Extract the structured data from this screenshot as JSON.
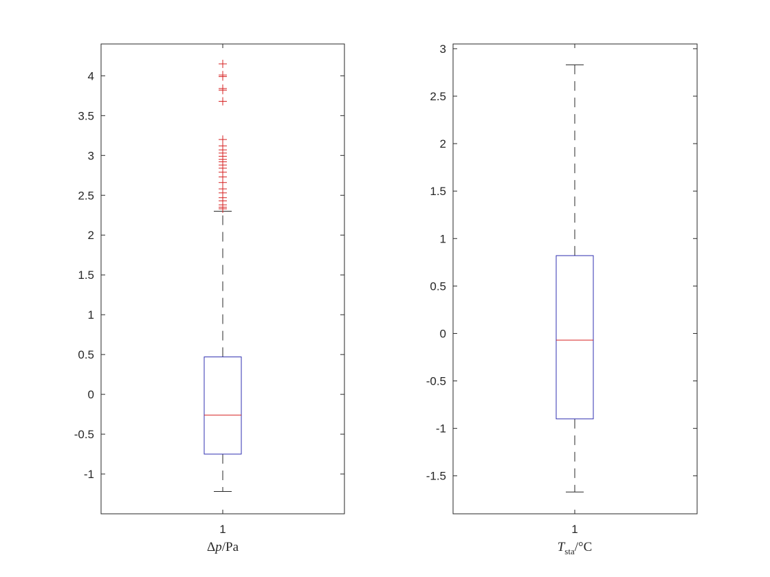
{
  "figure": {
    "background": "#ffffff",
    "axis_color": "#262626",
    "box_color": "#2f2fb0",
    "median_color": "#d62020",
    "outlier_color": "#d62020",
    "whisker_color": "#262626"
  },
  "chart_data": [
    {
      "type": "box",
      "categories": [
        "1"
      ],
      "xlabel": "Δp/Pa",
      "xlabel_parts": {
        "delta": "Δ",
        "var": "p",
        "slash": "/",
        "unit": "Pa"
      },
      "ylabel": "",
      "ylim": [
        -1.5,
        4.4
      ],
      "yticks": [
        -1,
        -0.5,
        0,
        0.5,
        1,
        1.5,
        2,
        2.5,
        3,
        3.5,
        4
      ],
      "ytick_labels": [
        "-1",
        "-0.5",
        "0",
        "0.5",
        "1",
        "1.5",
        "2",
        "2.5",
        "3",
        "3.5",
        "4"
      ],
      "box": {
        "whisker_low": -1.22,
        "q1": -0.75,
        "median": -0.26,
        "q3": 0.47,
        "whisker_high": 2.3
      },
      "outliers": [
        2.33,
        2.35,
        2.38,
        2.43,
        2.47,
        2.53,
        2.58,
        2.66,
        2.73,
        2.79,
        2.84,
        2.88,
        2.92,
        2.95,
        2.99,
        3.03,
        3.07,
        3.12,
        3.2,
        3.68,
        3.82,
        3.84,
        3.99,
        4.01,
        4.15
      ],
      "grid": false,
      "legend": "none"
    },
    {
      "type": "box",
      "categories": [
        "1"
      ],
      "xlabel": "Tsta/°C",
      "xlabel_parts": {
        "var": "T",
        "sub": "sta",
        "slash": "/",
        "unit": "°C"
      },
      "ylabel": "",
      "ylim": [
        -1.9,
        3.05
      ],
      "yticks": [
        -1.5,
        -1,
        -0.5,
        0,
        0.5,
        1,
        1.5,
        2,
        2.5,
        3
      ],
      "ytick_labels": [
        "-1.5",
        "-1",
        "-0.5",
        "0",
        "0.5",
        "1",
        "1.5",
        "2",
        "2.5",
        "3"
      ],
      "box": {
        "whisker_low": -1.67,
        "q1": -0.9,
        "median": -0.07,
        "q3": 0.82,
        "whisker_high": 2.83
      },
      "outliers": [],
      "grid": false,
      "legend": "none"
    }
  ]
}
